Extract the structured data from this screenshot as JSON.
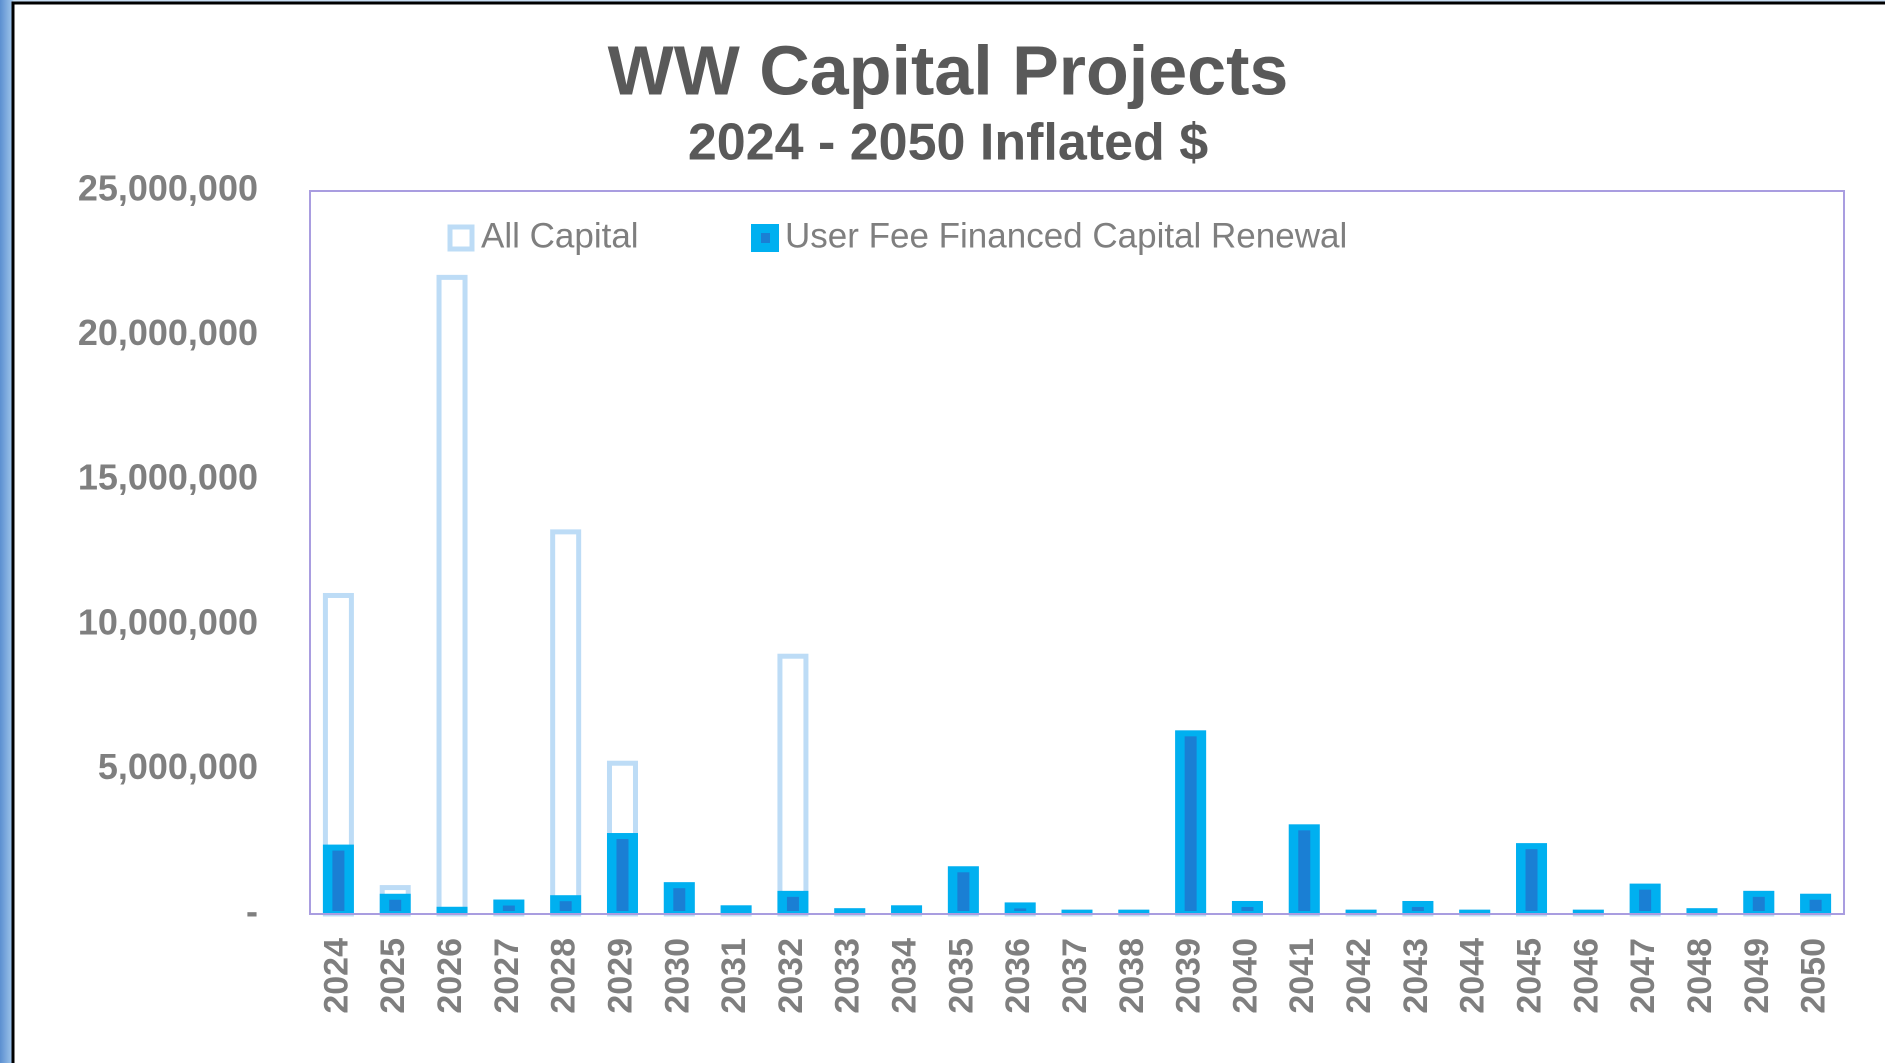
{
  "chart_data": {
    "type": "bar",
    "title": "WW Capital Projects",
    "subtitle": "2024 - 2050 Inflated $",
    "categories": [
      "2024",
      "2025",
      "2026",
      "2027",
      "2028",
      "2029",
      "2030",
      "2031",
      "2032",
      "2033",
      "2034",
      "2035",
      "2036",
      "2037",
      "2038",
      "2039",
      "2040",
      "2041",
      "2042",
      "2043",
      "2044",
      "2045",
      "2046",
      "2047",
      "2048",
      "2049",
      "2050"
    ],
    "series": [
      {
        "name": "All Capital",
        "color": "#bddcf6",
        "values": [
          11100000,
          1000000,
          22100000,
          500000,
          13300000,
          5300000,
          1100000,
          300000,
          9000000,
          200000,
          300000,
          1650000,
          400000,
          150000,
          150000,
          6350000,
          450000,
          3100000,
          150000,
          450000,
          150000,
          2450000,
          150000,
          1050000,
          200000,
          800000,
          700000
        ]
      },
      {
        "name": "User Fee Financed Capital Renewal",
        "color": "#00b0f0",
        "values": [
          2400000,
          700000,
          250000,
          500000,
          650000,
          2800000,
          1100000,
          300000,
          800000,
          200000,
          300000,
          1650000,
          400000,
          150000,
          150000,
          6350000,
          450000,
          3100000,
          150000,
          450000,
          150000,
          2450000,
          150000,
          1050000,
          200000,
          800000,
          700000
        ]
      }
    ],
    "ylim": [
      0,
      25000000
    ],
    "yticks": [
      {
        "value": 0,
        "label": "-"
      },
      {
        "value": 5000000,
        "label": "5,000,000"
      },
      {
        "value": 10000000,
        "label": "10,000,000"
      },
      {
        "value": 15000000,
        "label": "15,000,000"
      },
      {
        "value": 20000000,
        "label": "20,000,000"
      },
      {
        "value": 25000000,
        "label": "25,000,000"
      }
    ],
    "grid": false,
    "legend": "top"
  }
}
